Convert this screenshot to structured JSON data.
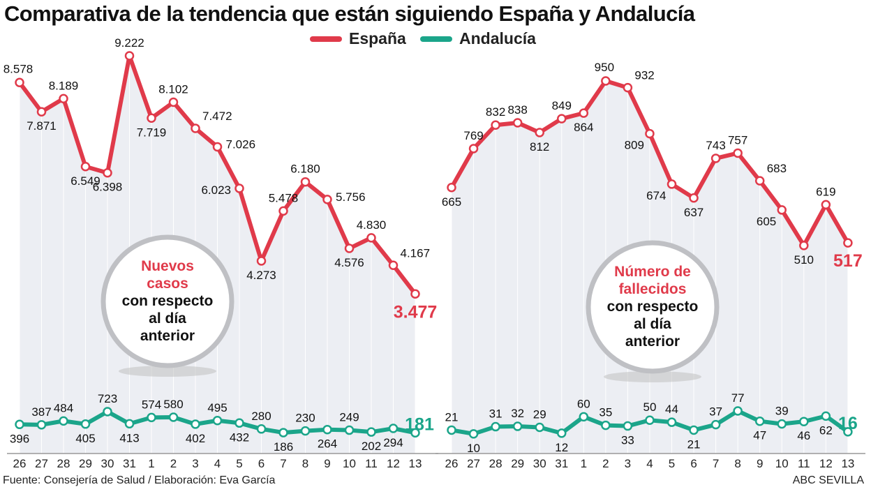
{
  "title": "Comparativa de la tendencia que están siguiendo España y Andalucía",
  "legend": [
    {
      "name": "España",
      "color": "#e03a4a"
    },
    {
      "name": "Andalucía",
      "color": "#1ba58a"
    }
  ],
  "footer": {
    "source": "Fuente: Consejería de Salud / Elaboración: Eva García",
    "credit": "ABC SEVILLA"
  },
  "chart_data": [
    {
      "type": "line",
      "circle_label": [
        "Nuevos",
        "casos",
        "con respecto",
        "al día",
        "anterior"
      ],
      "categories": [
        "26",
        "27",
        "28",
        "29",
        "30",
        "31",
        "1",
        "2",
        "3",
        "4",
        "5",
        "6",
        "7",
        "8",
        "9",
        "10",
        "11",
        "12",
        "13"
      ],
      "series": [
        {
          "name": "España",
          "values": [
            8578,
            7871,
            8189,
            6549,
            6398,
            9222,
            7719,
            8102,
            7472,
            7026,
            6023,
            4273,
            5478,
            6180,
            5756,
            4576,
            4830,
            4167,
            3477
          ],
          "labels": [
            "8.578",
            "7.871",
            "8.189",
            "6.549",
            "6.398",
            "9.222",
            "7.719",
            "8.102",
            "7.472",
            "7.026",
            "6.023",
            "4.273",
            "5.478",
            "6.180",
            "5.756",
            "4.576",
            "4.830",
            "4.167",
            "3.477"
          ]
        },
        {
          "name": "Andalucía",
          "values": [
            396,
            387,
            484,
            405,
            723,
            413,
            574,
            580,
            402,
            495,
            432,
            280,
            186,
            230,
            264,
            249,
            202,
            294,
            181
          ],
          "labels": [
            "396",
            "387",
            "484",
            "405",
            "723",
            "413",
            "574",
            "580",
            "402",
            "495",
            "432",
            "280",
            "186",
            "230",
            "264",
            "249",
            "202",
            "294",
            "181"
          ]
        }
      ]
    },
    {
      "type": "line",
      "circle_label": [
        "Número de",
        "fallecidos",
        "con respecto",
        "al día",
        "anterior"
      ],
      "categories": [
        "26",
        "27",
        "28",
        "29",
        "30",
        "31",
        "1",
        "2",
        "3",
        "4",
        "5",
        "6",
        "7",
        "8",
        "9",
        "10",
        "11",
        "12",
        "13"
      ],
      "series": [
        {
          "name": "España",
          "values": [
            665,
            769,
            832,
            838,
            812,
            849,
            864,
            950,
            932,
            809,
            674,
            637,
            743,
            757,
            683,
            605,
            510,
            619,
            517
          ],
          "labels": [
            "665",
            "769",
            "832",
            "838",
            "812",
            "849",
            "864",
            "950",
            "932",
            "809",
            "674",
            "637",
            "743",
            "757",
            "683",
            "605",
            "510",
            "619",
            "517"
          ]
        },
        {
          "name": "Andalucía",
          "values": [
            21,
            10,
            31,
            32,
            29,
            12,
            60,
            35,
            33,
            50,
            44,
            21,
            37,
            77,
            47,
            39,
            46,
            62,
            16
          ],
          "labels": [
            "21",
            "10",
            "31",
            "32",
            "29",
            "12",
            "60",
            "35",
            "33",
            "50",
            "44",
            "21",
            "37",
            "77",
            "47",
            "39",
            "46",
            "62",
            "16"
          ]
        }
      ]
    }
  ]
}
